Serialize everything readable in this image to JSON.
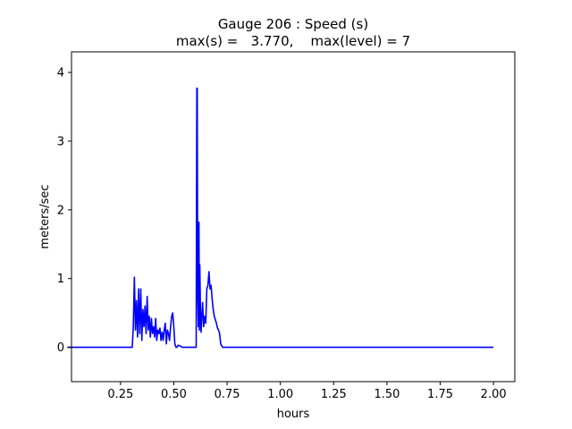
{
  "chart_data": {
    "type": "line",
    "title_line1": "Gauge 206 : Speed (s)",
    "title_line2": "max(s) =   3.770,    max(level) = 7",
    "xlabel": "hours",
    "ylabel": "meters/sec",
    "xlim": [
      0.02,
      2.1
    ],
    "ylim": [
      -0.5,
      4.3
    ],
    "xticks": [
      0.25,
      0.5,
      0.75,
      1.0,
      1.25,
      1.5,
      1.75,
      2.0
    ],
    "xtick_labels": [
      "0.25",
      "0.50",
      "0.75",
      "1.00",
      "1.25",
      "1.50",
      "1.75",
      "2.00"
    ],
    "yticks": [
      0,
      1,
      2,
      3,
      4
    ],
    "ytick_labels": [
      "0",
      "1",
      "2",
      "3",
      "4"
    ],
    "grid": false,
    "series": [
      {
        "color": "#0000ff",
        "x": [
          0.0,
          0.305,
          0.31,
          0.315,
          0.32,
          0.325,
          0.33,
          0.335,
          0.34,
          0.345,
          0.35,
          0.355,
          0.36,
          0.365,
          0.37,
          0.375,
          0.38,
          0.385,
          0.39,
          0.395,
          0.4,
          0.405,
          0.41,
          0.415,
          0.42,
          0.425,
          0.43,
          0.435,
          0.44,
          0.445,
          0.45,
          0.455,
          0.46,
          0.465,
          0.47,
          0.475,
          0.48,
          0.485,
          0.49,
          0.495,
          0.5,
          0.505,
          0.51,
          0.515,
          0.52,
          0.53,
          0.54,
          0.55,
          0.56,
          0.57,
          0.58,
          0.59,
          0.6,
          0.605,
          0.608,
          0.61,
          0.612,
          0.615,
          0.618,
          0.62,
          0.622,
          0.625,
          0.628,
          0.63,
          0.635,
          0.64,
          0.645,
          0.65,
          0.655,
          0.66,
          0.665,
          0.67,
          0.675,
          0.68,
          0.685,
          0.69,
          0.695,
          0.7,
          0.705,
          0.71,
          0.715,
          0.72,
          0.725,
          0.73,
          0.735,
          0.74,
          0.745,
          0.75,
          0.76,
          0.8,
          1.0,
          1.25,
          1.5,
          1.75,
          2.0
        ],
        "y": [
          0.0,
          0.0,
          0.3,
          1.02,
          0.25,
          0.68,
          0.15,
          0.85,
          0.2,
          0.85,
          0.1,
          0.55,
          0.3,
          0.6,
          0.2,
          0.74,
          0.25,
          0.45,
          0.15,
          0.42,
          0.2,
          0.3,
          0.15,
          0.42,
          0.1,
          0.25,
          0.2,
          0.28,
          0.1,
          0.22,
          0.1,
          0.25,
          0.35,
          0.05,
          0.25,
          0.2,
          0.1,
          0.3,
          0.45,
          0.5,
          0.3,
          0.05,
          0.0,
          0.0,
          0.03,
          0.02,
          0.0,
          0.0,
          0.0,
          0.0,
          0.0,
          0.0,
          0.0,
          0.0,
          3.77,
          3.77,
          0.8,
          0.3,
          1.82,
          0.25,
          1.2,
          0.55,
          0.22,
          0.35,
          0.65,
          0.3,
          0.45,
          0.35,
          0.85,
          0.9,
          1.1,
          0.85,
          0.9,
          0.7,
          0.55,
          0.45,
          0.4,
          0.35,
          0.28,
          0.25,
          0.2,
          0.05,
          0.02,
          0.0,
          0.0,
          0.0,
          0.0,
          0.0,
          0.0,
          0.0,
          0.0,
          0.0,
          0.0,
          0.0,
          0.0
        ]
      }
    ]
  }
}
